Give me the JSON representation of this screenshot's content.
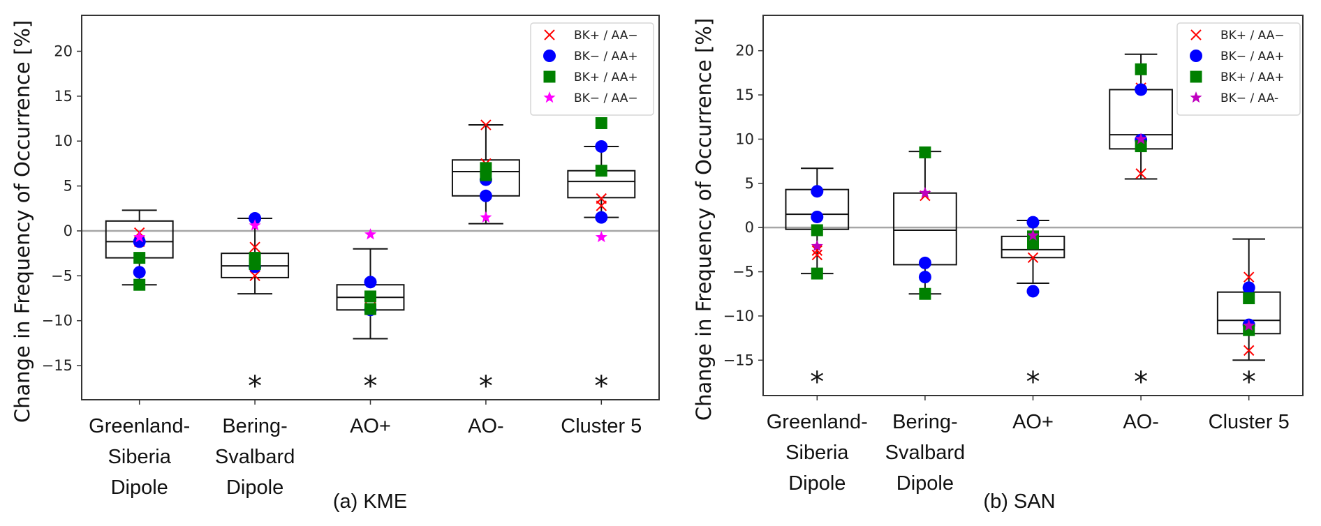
{
  "chart_data": [
    {
      "type": "box",
      "panel": "a",
      "caption": "(a)  KME",
      "ylabel": "Change in Frequency of Occurrence [%]",
      "ylim": [
        -18.8,
        24
      ],
      "yticks": [
        -15,
        -10,
        -5,
        0,
        5,
        10,
        15,
        20
      ],
      "reference_line": 0,
      "categories": [
        "Greenland-\nSiberia\nDipole",
        "Bering-\nSvalbard\nDipole",
        "AO+",
        "AO-",
        "Cluster 5"
      ],
      "legend": {
        "placement": "top-right",
        "entries": [
          {
            "label": "BK+ / AA−",
            "marker": "x",
            "color": "#ff0000"
          },
          {
            "label": "BK− / AA+",
            "marker": "circle",
            "color": "#0000ff"
          },
          {
            "label": "BK+ / AA+",
            "marker": "square",
            "color": "#008000"
          },
          {
            "label": "BK− / AA−",
            "marker": "star",
            "color": "#ff00ff"
          }
        ]
      },
      "boxes": [
        {
          "whisker_low": -6.0,
          "q1": -3.0,
          "median": -1.2,
          "q3": 1.1,
          "whisker_high": 2.3,
          "significant": false
        },
        {
          "whisker_low": -7.0,
          "q1": -5.2,
          "median": -3.9,
          "q3": -2.5,
          "whisker_high": 1.4,
          "significant": true
        },
        {
          "whisker_low": -12.0,
          "q1": -8.8,
          "median": -7.4,
          "q3": -6.0,
          "whisker_high": -2.0,
          "significant": true
        },
        {
          "whisker_low": 0.8,
          "q1": 3.9,
          "median": 6.6,
          "q3": 7.9,
          "whisker_high": 11.8,
          "significant": true
        },
        {
          "whisker_low": 1.5,
          "q1": 3.7,
          "median": 5.5,
          "q3": 6.7,
          "whisker_high": 9.4,
          "significant": true
        }
      ],
      "series": [
        {
          "name": "BK+ / AA−",
          "points": [
            [
              0,
              -0.2
            ],
            [
              0,
              -1.2
            ],
            [
              1,
              -1.8
            ],
            [
              1,
              -5.0
            ],
            [
              2,
              -8.5
            ],
            [
              2,
              -8.8
            ],
            [
              3,
              11.8
            ],
            [
              3,
              7.5
            ],
            [
              4,
              3.6
            ],
            [
              4,
              2.8
            ]
          ]
        },
        {
          "name": "BK− / AA+",
          "points": [
            [
              0,
              -1.2
            ],
            [
              0,
              -4.6
            ],
            [
              1,
              1.4
            ],
            [
              1,
              -4.0
            ],
            [
              2,
              -5.7
            ],
            [
              2,
              -8.8
            ],
            [
              3,
              5.7
            ],
            [
              3,
              3.9
            ],
            [
              4,
              9.4
            ],
            [
              4,
              1.5
            ]
          ]
        },
        {
          "name": "BK+ / AA+",
          "points": [
            [
              0,
              -3.0
            ],
            [
              0,
              -6.0
            ],
            [
              1,
              -3.0
            ],
            [
              1,
              -3.7
            ],
            [
              2,
              -7.3
            ],
            [
              2,
              -8.7
            ],
            [
              3,
              7.0
            ],
            [
              3,
              6.2
            ],
            [
              4,
              12.0
            ],
            [
              4,
              6.7
            ]
          ]
        },
        {
          "name": "BK− / AA−",
          "points": [
            [
              0,
              -0.7
            ],
            [
              1,
              0.6
            ],
            [
              2,
              -0.4
            ],
            [
              3,
              1.5
            ],
            [
              4,
              -0.7
            ]
          ]
        }
      ]
    },
    {
      "type": "box",
      "panel": "b",
      "caption": "(b) SAN",
      "ylabel": "Change in Frequency of Occurrence [%]",
      "ylim": [
        -19,
        24
      ],
      "yticks": [
        -15,
        -10,
        -5,
        0,
        5,
        10,
        15,
        20
      ],
      "reference_line": 0,
      "categories": [
        "Greenland-\nSiberia\nDipole",
        "Bering-\nSvalbard\nDipole",
        "AO+",
        "AO-",
        "Cluster 5"
      ],
      "legend": {
        "placement": "top-right",
        "entries": [
          {
            "label": "BK+ / AA−",
            "marker": "x",
            "color": "#ff0000"
          },
          {
            "label": "BK− / AA+",
            "marker": "circle",
            "color": "#0000ff"
          },
          {
            "label": "BK+ / AA+",
            "marker": "square",
            "color": "#008000"
          },
          {
            "label": "BK− / AA-",
            "marker": "star",
            "color": "#bf00bf"
          }
        ]
      },
      "boxes": [
        {
          "whisker_low": -5.2,
          "q1": -0.2,
          "median": 1.5,
          "q3": 4.3,
          "whisker_high": 6.7,
          "significant": true
        },
        {
          "whisker_low": -7.5,
          "q1": -4.2,
          "median": -0.3,
          "q3": 3.9,
          "whisker_high": 8.6,
          "significant": false
        },
        {
          "whisker_low": -6.3,
          "q1": -3.4,
          "median": -2.5,
          "q3": -1.0,
          "whisker_high": 0.8,
          "significant": true
        },
        {
          "whisker_low": 5.5,
          "q1": 8.9,
          "median": 10.5,
          "q3": 15.6,
          "whisker_high": 19.6,
          "significant": true
        },
        {
          "whisker_low": -15.0,
          "q1": -12.0,
          "median": -10.5,
          "q3": -7.3,
          "whisker_high": -1.3,
          "significant": true
        }
      ],
      "series": [
        {
          "name": "BK+ / AA−",
          "points": [
            [
              0,
              -2.6
            ],
            [
              0,
              -3.1
            ],
            [
              1,
              3.6
            ],
            [
              2,
              -3.4
            ],
            [
              3,
              15.8
            ],
            [
              3,
              6.1
            ],
            [
              4,
              -5.6
            ],
            [
              4,
              -13.9
            ]
          ]
        },
        {
          "name": "BK− / AA+",
          "points": [
            [
              0,
              4.1
            ],
            [
              0,
              1.2
            ],
            [
              1,
              -4.0
            ],
            [
              1,
              -5.6
            ],
            [
              2,
              0.6
            ],
            [
              2,
              -7.2
            ],
            [
              3,
              15.6
            ],
            [
              3,
              9.9
            ],
            [
              4,
              -6.8
            ],
            [
              4,
              -11.0
            ]
          ]
        },
        {
          "name": "BK+ / AA+",
          "points": [
            [
              0,
              -0.3
            ],
            [
              0,
              -5.2
            ],
            [
              1,
              8.5
            ],
            [
              1,
              -7.5
            ],
            [
              2,
              -1.0
            ],
            [
              2,
              -1.8
            ],
            [
              3,
              17.9
            ],
            [
              3,
              9.2
            ],
            [
              4,
              -8.0
            ],
            [
              4,
              -11.6
            ]
          ]
        },
        {
          "name": "BK− / AA-",
          "points": [
            [
              0,
              -2.1
            ],
            [
              1,
              3.9
            ],
            [
              2,
              -0.9
            ],
            [
              3,
              10.0
            ],
            [
              4,
              -11.1
            ]
          ]
        }
      ]
    }
  ],
  "significance_marker": "*"
}
